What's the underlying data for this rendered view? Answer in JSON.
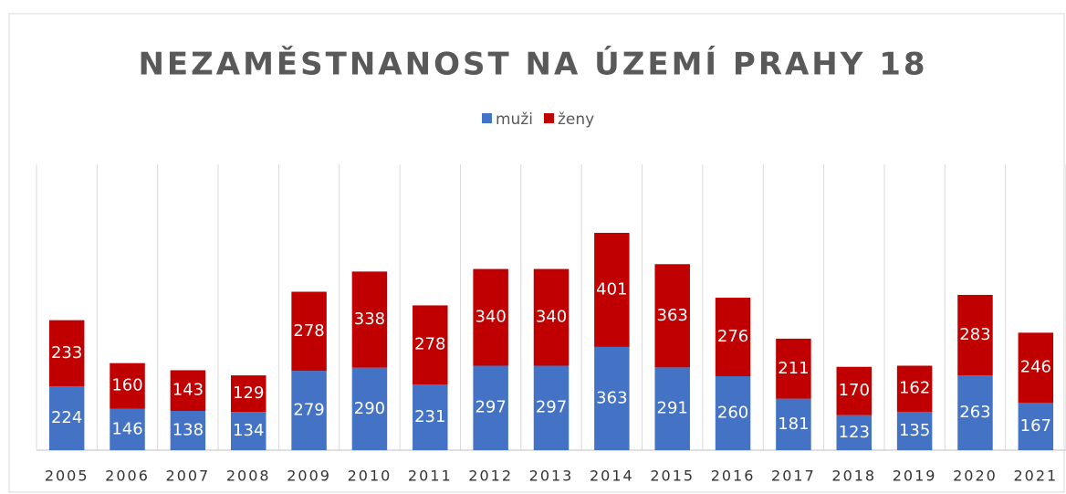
{
  "chart_data": {
    "type": "bar",
    "stacked": true,
    "title": "NEZAMĚSTNANOST NA ÚZEMÍ PRAHY 18",
    "categories": [
      "2005",
      "2006",
      "2007",
      "2008",
      "2009",
      "2010",
      "2011",
      "2012",
      "2013",
      "2014",
      "2015",
      "2016",
      "2017",
      "2018",
      "2019",
      "2020",
      "2021"
    ],
    "series": [
      {
        "name": "muži",
        "color": "#4472c4",
        "values": [
          224,
          146,
          138,
          134,
          279,
          290,
          231,
          297,
          297,
          363,
          291,
          260,
          181,
          123,
          135,
          263,
          167
        ]
      },
      {
        "name": "ženy",
        "color": "#c00000",
        "values": [
          233,
          160,
          143,
          129,
          278,
          338,
          278,
          340,
          340,
          401,
          363,
          276,
          211,
          170,
          162,
          283,
          246
        ]
      }
    ],
    "grid": true,
    "legend": "top"
  }
}
